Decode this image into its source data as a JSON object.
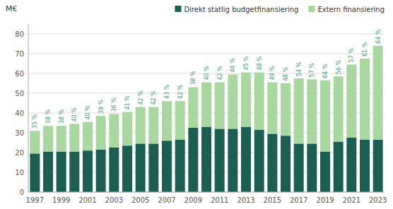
{
  "chart_data": {
    "type": "bar",
    "stacked": true,
    "y_label": "M€",
    "categories": [
      "1997",
      null,
      "1999",
      null,
      "2001",
      null,
      "2003",
      null,
      "2005",
      null,
      "2007",
      null,
      "2009",
      null,
      "2011",
      null,
      "2013",
      null,
      "2015",
      null,
      "2017",
      null,
      "2019",
      null,
      "2021",
      null,
      "2023"
    ],
    "series": [
      {
        "name": "Direkt statlig budgetfinansiering",
        "color": "#1b5e52",
        "values": [
          19.5,
          20.5,
          20.5,
          20.5,
          21.0,
          21.5,
          22.5,
          23.5,
          24.5,
          24.5,
          26.0,
          26.5,
          32.5,
          33.0,
          32.0,
          32.0,
          33.0,
          31.5,
          29.5,
          28.5,
          24.5,
          24.5,
          20.5,
          25.5,
          27.5,
          26.5,
          26.5
        ]
      },
      {
        "name": "Extern finansiering",
        "color": "#a8d8a0",
        "values": [
          11.5,
          13.0,
          13.0,
          14.0,
          14.5,
          17.0,
          17.0,
          17.0,
          18.5,
          18.5,
          20.0,
          19.5,
          20.5,
          22.5,
          23.5,
          27.5,
          27.5,
          29.0,
          26.0,
          26.5,
          33.0,
          32.5,
          36.0,
          33.0,
          37.0,
          41.0,
          47.5
        ]
      }
    ],
    "percentages": [
      {
        "value": 35,
        "label": "35 %"
      },
      {
        "value": 38,
        "label": "38 %"
      },
      {
        "value": 38,
        "label": "38 %"
      },
      {
        "value": 40,
        "label": "40 %"
      },
      {
        "value": 40,
        "label": "40 %"
      },
      {
        "value": 39,
        "label": "39 %"
      },
      {
        "value": 36,
        "label": "36 %"
      },
      {
        "value": 41,
        "label": "41 %"
      },
      {
        "value": 42,
        "label": "42 %"
      },
      {
        "value": 42,
        "label": "42 %"
      },
      {
        "value": 43,
        "label": "43 %"
      },
      {
        "value": 42,
        "label": "42 %"
      },
      {
        "value": 38,
        "label": "38 %"
      },
      {
        "value": 40,
        "label": "40 %"
      },
      {
        "value": 42,
        "label": "42 %"
      },
      {
        "value": 46,
        "label": "46 %"
      },
      {
        "value": 45,
        "label": "45 %"
      },
      {
        "value": 48,
        "label": "48 %"
      },
      {
        "value": 49,
        "label": "49 %"
      },
      {
        "value": 48,
        "label": "48 %"
      },
      {
        "value": 54,
        "label": "54 %"
      },
      {
        "value": 57,
        "label": "57 %"
      },
      {
        "value": 64,
        "label": "64 %"
      },
      {
        "value": 56,
        "label": "56 %"
      },
      {
        "value": 57,
        "label": "57 %"
      },
      {
        "value": 61,
        "label": "61 %"
      },
      {
        "value": 64,
        "label": "64 %"
      }
    ],
    "ylim": [
      0,
      85
    ],
    "yticks": [
      0,
      10,
      20,
      30,
      40,
      50,
      60,
      70,
      80
    ],
    "grid": true,
    "legend": "upper right"
  }
}
